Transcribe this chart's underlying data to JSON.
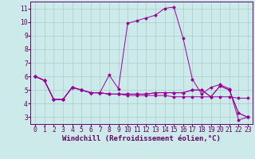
{
  "background_color": "#cceaea",
  "line_color": "#990099",
  "grid_color": "#aacccc",
  "xlabel": "Windchill (Refroidissement éolien,°C)",
  "xlabel_fontsize": 6.5,
  "tick_fontsize": 5.8,
  "ylim": [
    2.5,
    11.5
  ],
  "xlim": [
    -0.5,
    23.5
  ],
  "yticks": [
    3,
    4,
    5,
    6,
    7,
    8,
    9,
    10,
    11
  ],
  "xticks": [
    0,
    1,
    2,
    3,
    4,
    5,
    6,
    7,
    8,
    9,
    10,
    11,
    12,
    13,
    14,
    15,
    16,
    17,
    18,
    19,
    20,
    21,
    22,
    23
  ],
  "series": [
    [
      6.0,
      5.7,
      4.3,
      4.3,
      5.2,
      5.0,
      4.8,
      4.8,
      6.1,
      5.1,
      9.9,
      10.1,
      10.3,
      10.5,
      11.0,
      11.1,
      8.8,
      5.8,
      4.7,
      5.2,
      5.4,
      5.1,
      2.8,
      3.0
    ],
    [
      6.0,
      5.7,
      4.3,
      4.3,
      5.2,
      5.0,
      4.8,
      4.8,
      4.7,
      4.7,
      4.6,
      4.6,
      4.6,
      4.6,
      4.6,
      4.5,
      4.5,
      4.5,
      4.5,
      4.5,
      4.5,
      4.5,
      4.4,
      4.4
    ],
    [
      6.0,
      5.7,
      4.3,
      4.3,
      5.2,
      5.0,
      4.8,
      4.8,
      4.7,
      4.7,
      4.7,
      4.7,
      4.7,
      4.8,
      4.8,
      4.8,
      4.8,
      5.0,
      5.0,
      4.5,
      5.3,
      5.0,
      3.3,
      3.0
    ],
    [
      6.0,
      5.7,
      4.3,
      4.3,
      5.2,
      5.0,
      4.8,
      4.8,
      4.7,
      4.7,
      4.7,
      4.7,
      4.7,
      4.8,
      4.8,
      4.8,
      4.8,
      5.0,
      5.0,
      4.5,
      5.3,
      5.0,
      3.3,
      3.0
    ]
  ],
  "figsize": [
    3.2,
    2.0
  ],
  "dpi": 100
}
